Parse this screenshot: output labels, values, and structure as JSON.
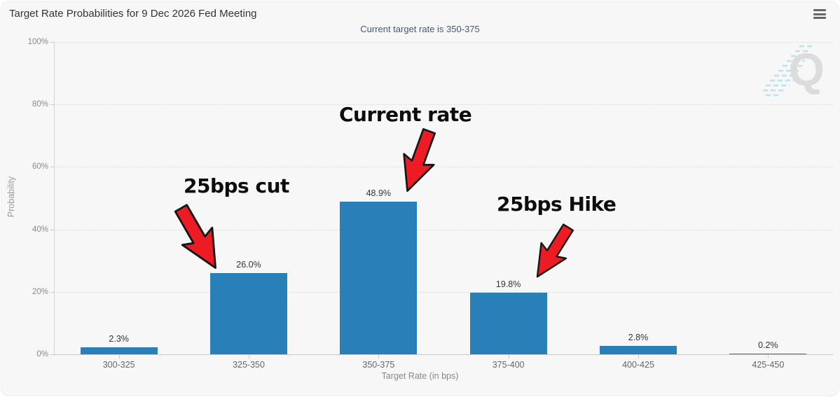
{
  "header": {
    "title": "Target Rate Probabilities for 9 Dec 2026 Fed Meeting",
    "subtitle": "Current target rate is 350-375",
    "menu_icon": "hamburger-icon"
  },
  "chart_data": {
    "type": "bar",
    "title": "Target Rate Probabilities for 9 Dec 2026 Fed Meeting",
    "subtitle": "Current target rate is 350-375",
    "categories": [
      "300-325",
      "325-350",
      "350-375",
      "375-400",
      "400-425",
      "425-450"
    ],
    "values": [
      2.3,
      26.0,
      48.9,
      19.8,
      2.8,
      0.2
    ],
    "value_labels": [
      "2.3%",
      "26.0%",
      "48.9%",
      "19.8%",
      "2.8%",
      "0.2%"
    ],
    "xlabel": "Target Rate (in bps)",
    "ylabel": "Probability",
    "ylim": [
      0,
      100
    ],
    "yticks": [
      "0%",
      "20%",
      "40%",
      "60%",
      "80%",
      "100%"
    ],
    "grid": "horizontal-dotted",
    "legend": "none",
    "bar_color": "#2980b9",
    "annotation_color": "#ed1c24",
    "annotations": [
      {
        "text": "25bps cut",
        "target": "325-350",
        "meaning": "probability of 26.0%"
      },
      {
        "text": "Current rate",
        "target": "350-375",
        "meaning": "probability of 48.9%"
      },
      {
        "text": "25bps Hike",
        "target": "375-400",
        "meaning": "probability of 19.8%"
      }
    ],
    "watermark": "Q"
  }
}
